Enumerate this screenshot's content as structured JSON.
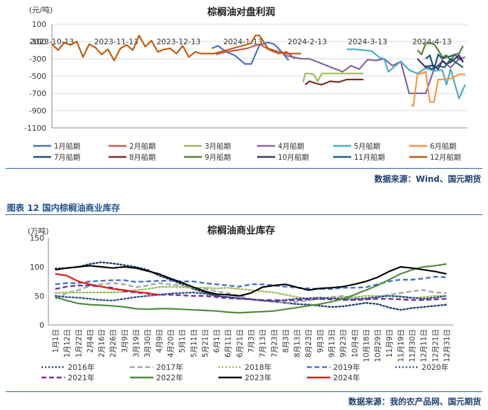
{
  "chart_data": [
    {
      "type": "line",
      "title": "棕榈油对盘利润",
      "ylabel": "(元/吨)",
      "ylim": [
        -1100,
        100
      ],
      "yticks": [
        100,
        -100,
        -300,
        -500,
        -700,
        -900,
        -1100
      ],
      "x_tick_labels": [
        "2023-10-13",
        "2023-11-13",
        "2023-12-13",
        "2024-1-13",
        "2024-2-13",
        "2024-3-13",
        "2024-4-13"
      ],
      "x_tick_index": [
        0,
        31,
        61,
        92,
        123,
        152,
        183
      ],
      "x_range": [
        0,
        200
      ],
      "legend_position": "bottom",
      "series": [
        {
          "name": "1月船期",
          "color": "#4472c4",
          "x": [
            77,
            80,
            84,
            88,
            93,
            96,
            100,
            104,
            107,
            111,
            114
          ],
          "values": [
            -180,
            -150,
            -220,
            -260,
            -360,
            -360,
            -140,
            -110,
            -130,
            -230,
            -320
          ]
        },
        {
          "name": "2月船期",
          "color": "#c55a4d",
          "x": [
            79,
            84,
            89,
            94,
            100,
            105,
            109,
            113,
            117
          ],
          "values": [
            -250,
            -220,
            -200,
            -180,
            -130,
            -200,
            -240,
            -220,
            -300
          ]
        },
        {
          "name": "3月船期",
          "color": "#9bbb59",
          "x": [
            121,
            122,
            124,
            126,
            128,
            130,
            140,
            150
          ],
          "values": [
            -570,
            -470,
            -470,
            -480,
            -560,
            -470,
            -470,
            -470
          ]
        },
        {
          "name": "4月船期",
          "color": "#8064a2",
          "x": [
            112,
            116,
            120,
            124,
            140,
            144,
            148,
            152,
            156,
            160,
            164,
            168,
            172,
            176,
            180,
            184,
            188,
            192,
            196,
            199
          ],
          "values": [
            -260,
            -280,
            -300,
            -300,
            -450,
            -380,
            -420,
            -310,
            -320,
            -300,
            -380,
            -330,
            -700,
            -700,
            -700,
            -420,
            -330,
            -400,
            -300,
            -280
          ]
        },
        {
          "name": "5月船期",
          "color": "#4bacc6",
          "x": [
            142,
            146,
            150,
            154,
            158,
            160,
            162,
            164,
            168,
            172,
            176,
            180,
            184,
            188,
            190,
            192,
            196,
            199
          ],
          "values": [
            -190,
            -190,
            -200,
            -210,
            -290,
            -300,
            -450,
            -410,
            -330,
            -430,
            -470,
            -410,
            -440,
            -430,
            -600,
            -420,
            -760,
            -600
          ]
        },
        {
          "name": "6月船期",
          "color": "#f79646",
          "x": [
            173,
            174,
            176,
            178,
            180,
            182,
            184,
            186,
            188,
            192,
            196,
            199
          ],
          "values": [
            -830,
            -850,
            -480,
            -470,
            -450,
            -800,
            -800,
            -540,
            -540,
            -530,
            -480,
            -480
          ]
        },
        {
          "name": "7月船期",
          "color": "#1f4e79",
          "x": [
            180,
            182,
            184,
            186,
            188,
            190,
            192,
            194,
            196,
            198
          ],
          "values": [
            -300,
            -260,
            -420,
            -250,
            -300,
            -280,
            -270,
            -250,
            -300,
            -320
          ]
        },
        {
          "name": "8月船期",
          "color": "#7f2a22",
          "x": [
            122,
            124,
            128,
            130,
            134,
            138,
            142,
            146,
            150
          ],
          "values": [
            -600,
            -560,
            -590,
            -600,
            -560,
            -570,
            -540,
            -540,
            -540
          ]
        },
        {
          "name": "9月船期",
          "color": "#4f7f2e",
          "x": [
            176,
            178,
            180,
            182,
            184,
            186,
            188,
            190,
            192,
            194,
            196,
            198
          ],
          "values": [
            -200,
            -250,
            -120,
            -120,
            -130,
            -200,
            -280,
            -260,
            -320,
            -250,
            -240,
            -150
          ]
        },
        {
          "name": "10月船期",
          "color": "#3f2f6a",
          "x": [
            176,
            178,
            180,
            182,
            184,
            186,
            188,
            190,
            192,
            194,
            196,
            198
          ],
          "values": [
            -300,
            -350,
            -400,
            -380,
            -380,
            -420,
            -320,
            -360,
            -340,
            -300,
            -260,
            -340
          ]
        },
        {
          "name": "11月船期",
          "color": "#1f5f73",
          "x": [
            180,
            183,
            186,
            189,
            192,
            195,
            198
          ],
          "values": [
            -380,
            -420,
            -380,
            -400,
            -300,
            -350,
            -400
          ]
        },
        {
          "name": "12月船期",
          "color": "#c0590b",
          "x": [
            0,
            3,
            6,
            9,
            12,
            15,
            18,
            21,
            24,
            27,
            30,
            33,
            36,
            39,
            42,
            45,
            48,
            51,
            54,
            57,
            60,
            63,
            66,
            69,
            72,
            75,
            78,
            96,
            98,
            100,
            104,
            108,
            112,
            116,
            120
          ],
          "values": [
            -130,
            -200,
            -110,
            -140,
            -100,
            -280,
            -130,
            -170,
            -250,
            -190,
            -320,
            -180,
            -140,
            -200,
            -30,
            -160,
            -90,
            -220,
            -190,
            -180,
            -240,
            -150,
            -280,
            -220,
            -240,
            -240,
            -240,
            -120,
            -30,
            -30,
            -180,
            -210,
            -240,
            -240,
            -240
          ]
        }
      ]
    },
    {
      "type": "line",
      "title": "棕榈油商业库存",
      "ylabel": "(万吨)",
      "ylim": [
        0,
        150
      ],
      "yticks": [
        0,
        50,
        100,
        150
      ],
      "x_categories": [
        "1月1日",
        "1月12日",
        "1月22日",
        "2月4日",
        "2月16日",
        "2月26日",
        "3月9日",
        "3月19日",
        "3月30日",
        "4月9日",
        "4月20日",
        "5月1日",
        "5月11日",
        "5月21日",
        "6月1日",
        "6月11日",
        "6月21日",
        "7月3日",
        "7月13日",
        "7月23日",
        "8月3日",
        "8月13日",
        "8月23日",
        "9月3日",
        "9月13日",
        "9月23日",
        "10月4日",
        "10月18日",
        "10月29日",
        "11月9日",
        "11月19日",
        "11月30日",
        "12月11日",
        "12月21日",
        "12月31日"
      ],
      "legend_position": "bottom",
      "series": [
        {
          "name": "2016年",
          "color": "#1f3f6a",
          "style": "dotted",
          "values": [
            97,
            98,
            100,
            105,
            108,
            106,
            103,
            100,
            95,
            85,
            78,
            70,
            62,
            56,
            50,
            48,
            46,
            44,
            42,
            40,
            38,
            36,
            35,
            33,
            31,
            32,
            35,
            38,
            36,
            30,
            26,
            29,
            31,
            33,
            35
          ]
        },
        {
          "name": "2017年",
          "color": "#a5a5a5",
          "style": "dashed",
          "values": [
            45,
            55,
            60,
            67,
            70,
            72,
            70,
            65,
            68,
            72,
            70,
            68,
            65,
            62,
            58,
            55,
            50,
            45,
            42,
            40,
            38,
            40,
            42,
            45,
            48,
            50,
            46,
            45,
            48,
            52,
            55,
            58,
            60,
            56,
            55
          ]
        },
        {
          "name": "2018年",
          "color": "#9bbb59",
          "style": "dotted",
          "values": [
            55,
            56,
            56,
            56,
            56,
            56,
            57,
            60,
            62,
            65,
            66,
            65,
            64,
            64,
            63,
            64,
            62,
            60,
            58,
            56,
            52,
            48,
            45,
            44,
            46,
            48,
            48,
            50,
            50,
            50,
            48,
            46,
            48,
            50,
            50
          ]
        },
        {
          "name": "2019年",
          "color": "#4472c4",
          "style": "dashed",
          "values": [
            70,
            72,
            72,
            75,
            76,
            77,
            77,
            74,
            75,
            76,
            76,
            75,
            75,
            72,
            70,
            68,
            66,
            70,
            70,
            68,
            66,
            64,
            63,
            62,
            62,
            64,
            64,
            65,
            70,
            75,
            78,
            78,
            80,
            83,
            82
          ]
        },
        {
          "name": "2020年",
          "color": "#2e4f8a",
          "style": "dotted",
          "values": [
            50,
            48,
            47,
            45,
            43,
            42,
            45,
            48,
            50,
            52,
            54,
            55,
            56,
            54,
            50,
            48,
            46,
            44,
            42,
            41,
            43,
            45,
            46,
            47,
            46,
            45,
            44,
            46,
            48,
            50,
            49,
            47,
            45,
            47,
            50
          ]
        },
        {
          "name": "2021年",
          "color": "#7030a0",
          "style": "dashed",
          "values": [
            62,
            66,
            68,
            68,
            66,
            64,
            58,
            56,
            54,
            52,
            52,
            51,
            50,
            50,
            48,
            46,
            45,
            44,
            43,
            43,
            42,
            43,
            44,
            45,
            44,
            43,
            43,
            44,
            45,
            45,
            44,
            43,
            43,
            44,
            45
          ]
        },
        {
          "name": "2022年",
          "color": "#4f8a3a",
          "style": "solid",
          "values": [
            48,
            42,
            37,
            35,
            34,
            33,
            31,
            28,
            27,
            28,
            28,
            27,
            26,
            25,
            24,
            22,
            21,
            22,
            23,
            24,
            27,
            30,
            33,
            36,
            40,
            45,
            52,
            60,
            68,
            78,
            88,
            95,
            100,
            102,
            105
          ]
        },
        {
          "name": "2023年",
          "color": "#000000",
          "style": "solid",
          "values": [
            95,
            98,
            100,
            102,
            100,
            98,
            100,
            98,
            93,
            88,
            80,
            73,
            65,
            58,
            53,
            52,
            50,
            55,
            65,
            68,
            70,
            65,
            60,
            63,
            64,
            66,
            70,
            75,
            82,
            92,
            100,
            98,
            95,
            92,
            88
          ]
        },
        {
          "name": "2024年",
          "color": "#e31a1c",
          "style": "solid",
          "values": [
            88,
            85,
            75,
            70,
            66,
            62,
            60,
            57,
            55,
            52
          ]
        }
      ]
    }
  ],
  "figure": {
    "title": "图表 12 国内棕榈油商业库存"
  },
  "sources": {
    "top": "数据来源：Wind、国元期货",
    "bottom": "数据来源：我的农产品网、国元期货"
  }
}
